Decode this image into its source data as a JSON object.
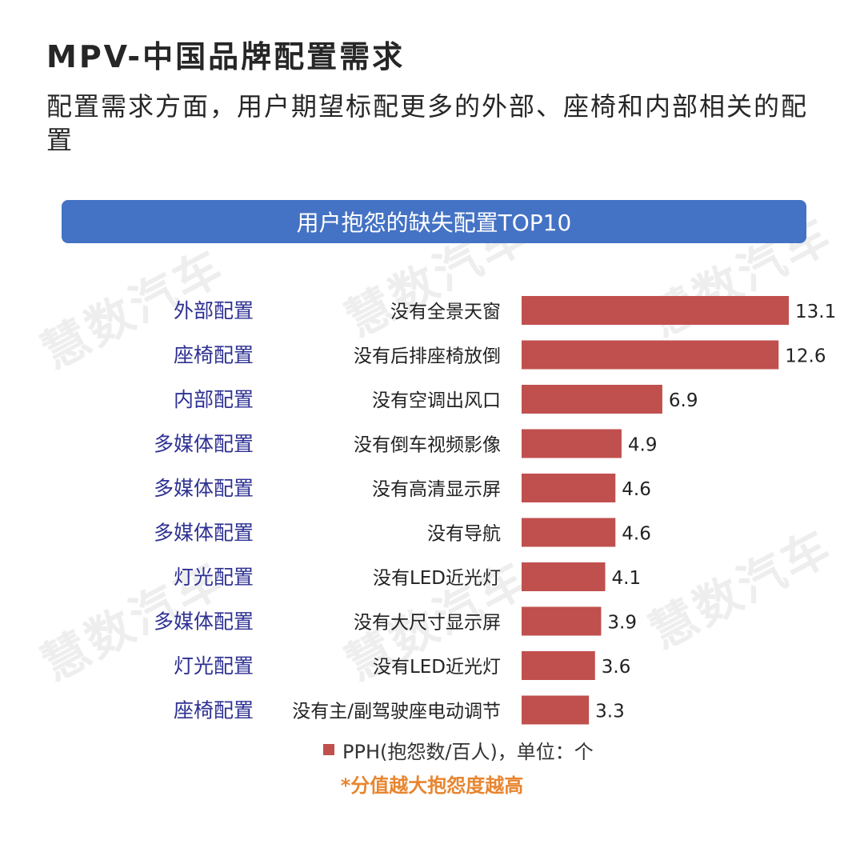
{
  "header": {
    "title": "MPV-中国品牌配置需求",
    "subtitle": "配置需求方面，用户期望标配更多的外部、座椅和内部相关的配置"
  },
  "banner": {
    "text": "用户抱怨的缺失配置TOP10"
  },
  "watermark": {
    "text": "慧数汽车"
  },
  "colors": {
    "bar": "#c0504d",
    "banner": "#4472c4",
    "category_text": "#2e3192",
    "note": "#e8852f"
  },
  "chart_data": {
    "type": "bar",
    "orientation": "horizontal",
    "groups": [
      "外部配置",
      "座椅配置",
      "内部配置",
      "多媒体配置",
      "多媒体配置",
      "多媒体配置",
      "灯光配置",
      "多媒体配置",
      "灯光配置",
      "座椅配置"
    ],
    "categories": [
      "没有全景天窗",
      "没有后排座椅放倒",
      "没有空调出风口",
      "没有倒车视频影像",
      "没有高清显示屏",
      "没有导航",
      "没有LED近光灯",
      "没有大尺寸显示屏",
      "没有LED近光灯",
      "没有主/副驾驶座电动调节"
    ],
    "series": [
      {
        "name": "PPH(抱怨数/百人)，单位：个",
        "values": [
          13.1,
          12.6,
          6.9,
          4.9,
          4.6,
          4.6,
          4.1,
          3.9,
          3.6,
          3.3
        ]
      }
    ],
    "xlim": [
      0,
      13.1
    ],
    "grid": false,
    "legend": "bottom",
    "data_labels": true
  },
  "legend": {
    "text": "PPH(抱怨数/百人)，单位：个"
  },
  "note": {
    "text": "*分值越大抱怨度越高"
  }
}
